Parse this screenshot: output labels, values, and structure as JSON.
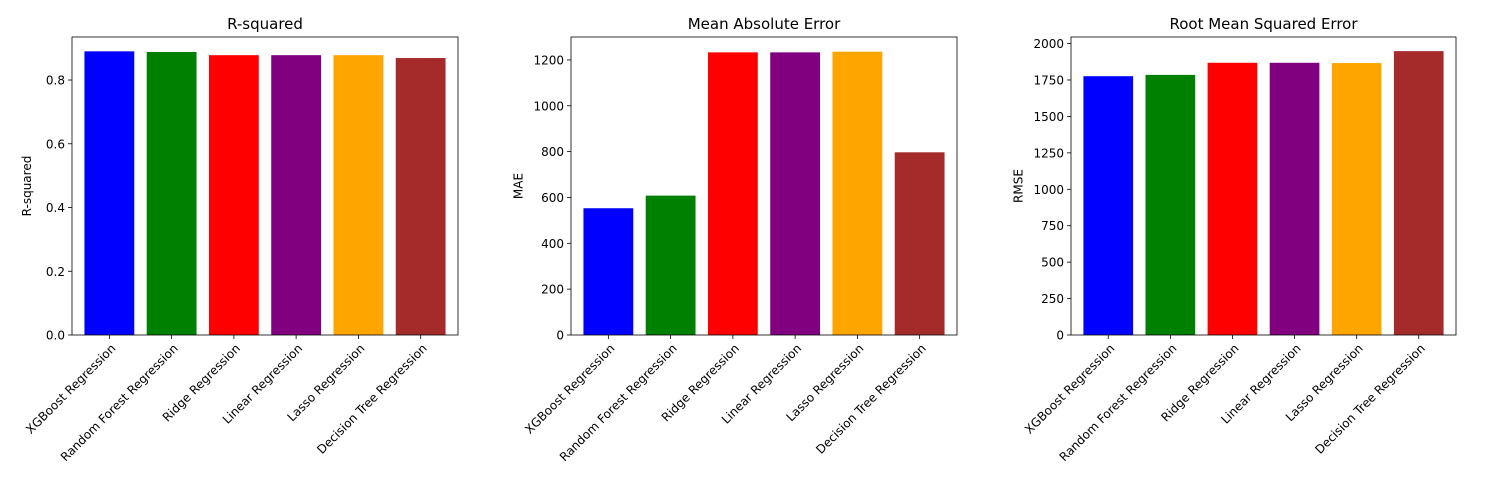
{
  "chart_data": [
    {
      "type": "bar",
      "title": "R-squared",
      "xlabel": "",
      "ylabel": "R-squared",
      "ylim": [
        0,
        0.935
      ],
      "yticks": [
        0.0,
        0.2,
        0.4,
        0.6,
        0.8
      ],
      "ytick_labels": [
        "0.0",
        "0.2",
        "0.4",
        "0.6",
        "0.8"
      ],
      "categories": [
        "XGBoost Regression",
        "Random Forest Regression",
        "Ridge Regression",
        "Linear Regression",
        "Lasso Regression",
        "Decision Tree Regression"
      ],
      "values": [
        0.89,
        0.888,
        0.878,
        0.878,
        0.878,
        0.869
      ],
      "colors": [
        "#0000ff",
        "#008000",
        "#ff0000",
        "#800080",
        "#ffa500",
        "#a52a2a"
      ]
    },
    {
      "type": "bar",
      "title": "Mean Absolute Error",
      "xlabel": "",
      "ylabel": "MAE",
      "ylim": [
        0,
        1300
      ],
      "yticks": [
        0,
        200,
        400,
        600,
        800,
        1000,
        1200
      ],
      "ytick_labels": [
        "0",
        "200",
        "400",
        "600",
        "800",
        "1000",
        "1200"
      ],
      "categories": [
        "XGBoost Regression",
        "Random Forest Regression",
        "Ridge Regression",
        "Linear Regression",
        "Lasso Regression",
        "Decision Tree Regression"
      ],
      "values": [
        553,
        608,
        1233,
        1233,
        1236,
        797
      ],
      "colors": [
        "#0000ff",
        "#008000",
        "#ff0000",
        "#800080",
        "#ffa500",
        "#a52a2a"
      ]
    },
    {
      "type": "bar",
      "title": "Root Mean Squared Error",
      "xlabel": "",
      "ylabel": "RMSE",
      "ylim": [
        0,
        2045
      ],
      "yticks": [
        0,
        250,
        500,
        750,
        1000,
        1250,
        1500,
        1750,
        2000
      ],
      "ytick_labels": [
        "0",
        "250",
        "500",
        "750",
        "1000",
        "1250",
        "1500",
        "1750",
        "2000"
      ],
      "categories": [
        "XGBoost Regression",
        "Random Forest Regression",
        "Ridge Regression",
        "Linear Regression",
        "Lasso Regression",
        "Decision Tree Regression"
      ],
      "values": [
        1776,
        1785,
        1868,
        1868,
        1866,
        1948
      ],
      "colors": [
        "#0000ff",
        "#008000",
        "#ff0000",
        "#800080",
        "#ffa500",
        "#a52a2a"
      ]
    }
  ]
}
